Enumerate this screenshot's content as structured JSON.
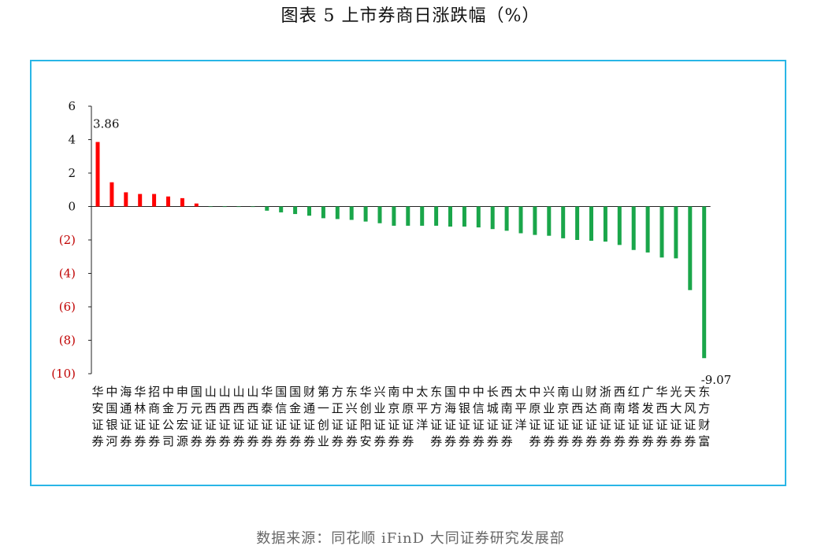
{
  "title": "图表 5  上市券商日涨跌幅（%）",
  "source": "数据来源：同花顺 iFinD 大同证券研究发展部",
  "colors": {
    "positive": "#ff0000",
    "negative": "#1aa64a",
    "negative_tick": "#c00000",
    "frame": "#29b6e6"
  },
  "chart_data": {
    "type": "bar",
    "title": "图表 5  上市券商日涨跌幅（%）",
    "ylabel": "",
    "xlabel": "",
    "ylim": [
      -10,
      6
    ],
    "yticks": [
      6,
      4,
      2,
      0,
      -2,
      -4,
      -6,
      -8,
      -10
    ],
    "ytick_labels": [
      "6",
      "4",
      "2",
      "0",
      "(2)",
      "(4)",
      "(6)",
      "(8)",
      "(10)"
    ],
    "grid": false,
    "categories": [
      "华安证券",
      "中国银河",
      "海通证券",
      "华林证券",
      "招商证券",
      "中金公司",
      "申万宏源",
      "国元证券",
      "山西证券",
      "山西证券",
      "山西证券",
      "山西证券",
      "华泰证券",
      "国信证券",
      "国金证券",
      "财通证券",
      "第一创业",
      "方正证券",
      "东兴证券",
      "华创阳安",
      "兴业证券",
      "南京证券",
      "中原证券",
      "太平洋",
      "东方证券",
      "国海证券",
      "中银证券",
      "中信证券",
      "长城证券",
      "西南证券",
      "太平洋",
      "中原证券",
      "兴业证券",
      "南京证券",
      "山西证券",
      "财达证券",
      "浙商证券",
      "西南证券",
      "红塔证券",
      "广发证券",
      "华西证券",
      "光大证券",
      "天风证券",
      "东方财富"
    ],
    "values": [
      3.86,
      1.45,
      0.85,
      0.75,
      0.75,
      0.6,
      0.5,
      0.18,
      -0.02,
      -0.02,
      -0.02,
      -0.02,
      -0.25,
      -0.35,
      -0.45,
      -0.55,
      -0.7,
      -0.75,
      -0.8,
      -0.9,
      -1.0,
      -1.15,
      -1.15,
      -1.15,
      -1.15,
      -1.2,
      -1.2,
      -1.25,
      -1.35,
      -1.45,
      -1.6,
      -1.7,
      -1.75,
      -1.9,
      -2.0,
      -2.05,
      -2.1,
      -2.3,
      -2.6,
      -2.75,
      -3.05,
      -3.1,
      -5.0,
      -9.07
    ],
    "labels": {
      "max": "3.86",
      "min": "-9.07"
    }
  }
}
